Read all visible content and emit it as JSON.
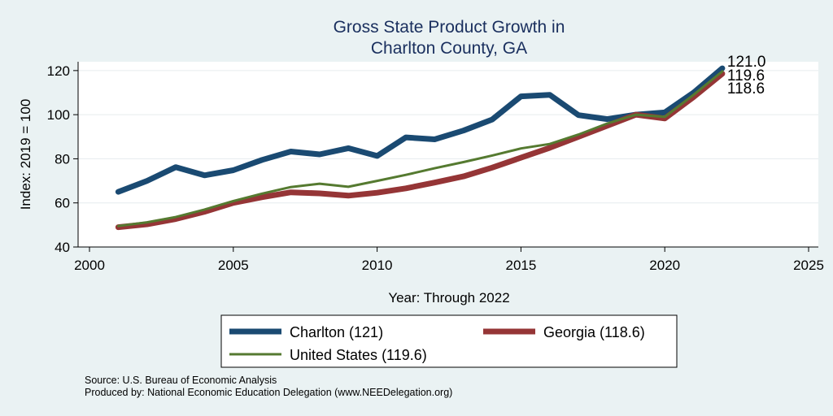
{
  "chart_data": {
    "type": "line",
    "title_lines": [
      "Gross State Product Growth in",
      "Charlton County, GA"
    ],
    "xlabel": "Year: Through 2022",
    "ylabel": "Index: 2019 = 100",
    "xlim": [
      2000,
      2025
    ],
    "ylim": [
      40,
      124
    ],
    "xticks": [
      2000,
      2005,
      2010,
      2015,
      2020,
      2025
    ],
    "yticks": [
      40,
      60,
      80,
      100,
      120
    ],
    "grid": "horizontal",
    "legend_position": "bottom",
    "x": [
      2001,
      2002,
      2003,
      2004,
      2005,
      2006,
      2007,
      2008,
      2009,
      2010,
      2011,
      2012,
      2013,
      2014,
      2015,
      2016,
      2017,
      2018,
      2019,
      2020,
      2021,
      2022
    ],
    "series": [
      {
        "name": "Charlton",
        "legend_label": "Charlton  (121)",
        "color": "#1a4a72",
        "width": 7,
        "end_label": "121.0",
        "values": [
          65.0,
          70.0,
          76.2,
          72.5,
          74.8,
          79.5,
          83.3,
          82.0,
          84.8,
          81.3,
          89.7,
          88.8,
          92.8,
          97.8,
          108.3,
          109.0,
          99.8,
          98.0,
          100.0,
          101.0,
          110.0,
          121.0
        ]
      },
      {
        "name": "Georgia",
        "legend_label": "Georgia (118.6)",
        "color": "#953536",
        "width": 7,
        "end_label": "118.6",
        "values": [
          49.0,
          50.3,
          52.7,
          56.0,
          60.0,
          62.6,
          64.8,
          64.3,
          63.3,
          64.6,
          66.6,
          69.2,
          72.0,
          76.0,
          80.5,
          85.0,
          90.0,
          95.0,
          100.0,
          98.3,
          108.0,
          118.6
        ]
      },
      {
        "name": "United States",
        "legend_label": "United States (119.6)",
        "color": "#557a30",
        "width": 3,
        "end_label": "119.6",
        "values": [
          49.5,
          51.2,
          53.6,
          57.0,
          60.8,
          64.2,
          67.2,
          68.7,
          67.3,
          70.0,
          72.7,
          75.7,
          78.5,
          81.5,
          84.7,
          86.7,
          91.0,
          96.0,
          100.0,
          99.0,
          109.0,
          119.6
        ]
      }
    ],
    "source_note": "Source: U.S. Bureau of Economic Analysis",
    "produced_note": "Produced by: National Economic Education Delegation (www.NEEDelegation.org)"
  }
}
